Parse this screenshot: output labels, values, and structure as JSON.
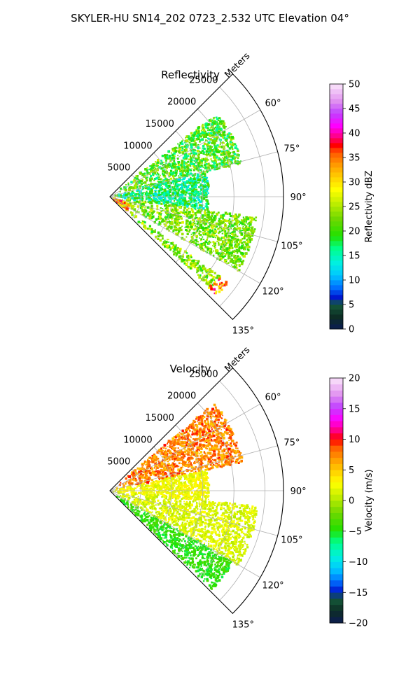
{
  "figure": {
    "suptitle": "SKYLER-HU  SN14_202  0723_2.532 UTC Elevation 04°"
  },
  "chart_data": [
    {
      "type": "heatmap",
      "projection": "polar-sector",
      "title": "Reflectivity",
      "range_axis_label": "Meters",
      "range_ticks": [
        5000,
        10000,
        15000,
        20000,
        25000
      ],
      "range_tick_labels": [
        "5000",
        "10000",
        "15000",
        "20000",
        "25000"
      ],
      "range_max": 28000,
      "azimuth_range": [
        45,
        135
      ],
      "azimuth_ticks": [
        60,
        75,
        90,
        105,
        120,
        135
      ],
      "azimuth_tick_labels": [
        "60°",
        "75°",
        "90°",
        "105°",
        "120°",
        "135°"
      ],
      "grid": true,
      "colorbar": {
        "label": "Reflectivity dBZ",
        "min": 0,
        "max": 50,
        "ticks": [
          0,
          5,
          10,
          15,
          20,
          25,
          30,
          35,
          40,
          45,
          50
        ],
        "tick_labels": [
          "0",
          "5",
          "10",
          "15",
          "20",
          "25",
          "30",
          "35",
          "40",
          "45",
          "50"
        ],
        "bin_width": 1
      },
      "echo_regions": [
        {
          "az": [
            52,
            76
          ],
          "r": [
            1000,
            22000
          ],
          "value_range": [
            15,
            26
          ]
        },
        {
          "az": [
            76,
            98
          ],
          "r": [
            500,
            16000
          ],
          "value_range": [
            12,
            22
          ]
        },
        {
          "az": [
            98,
            120
          ],
          "r": [
            500,
            24000
          ],
          "value_range": [
            18,
            27
          ]
        },
        {
          "az": [
            126,
            132
          ],
          "r": [
            3000,
            22000
          ],
          "value_range": [
            18,
            28
          ]
        },
        {
          "az": [
            110,
            128
          ],
          "r": [
            400,
            3500
          ],
          "value_range": [
            25,
            40
          ]
        },
        {
          "az": [
            126,
            133
          ],
          "r": [
            21000,
            23500
          ],
          "value_range": [
            28,
            40
          ]
        }
      ]
    },
    {
      "type": "heatmap",
      "projection": "polar-sector",
      "title": "Velocity",
      "range_axis_label": "Meters",
      "range_ticks": [
        5000,
        10000,
        15000,
        20000,
        25000
      ],
      "range_tick_labels": [
        "5000",
        "10000",
        "15000",
        "20000",
        "25000"
      ],
      "range_max": 28000,
      "azimuth_range": [
        45,
        135
      ],
      "azimuth_ticks": [
        60,
        75,
        90,
        105,
        120,
        135
      ],
      "azimuth_tick_labels": [
        "60°",
        "75°",
        "90°",
        "105°",
        "120°",
        "135°"
      ],
      "grid": true,
      "colorbar": {
        "label": "Velocity (m/s)",
        "min": -20,
        "max": 20,
        "ticks": [
          -20,
          -15,
          -10,
          -5,
          0,
          5,
          10,
          15,
          20
        ],
        "tick_labels": [
          "−20",
          "−15",
          "−10",
          "−5",
          "0",
          "5",
          "10",
          "15",
          "20"
        ],
        "bin_width": 1
      },
      "echo_regions": [
        {
          "az": [
            50,
            78
          ],
          "r": [
            1000,
            22000
          ],
          "value_range": [
            5,
            10
          ]
        },
        {
          "az": [
            78,
            96
          ],
          "r": [
            500,
            16000
          ],
          "value_range": [
            1,
            4
          ]
        },
        {
          "az": [
            96,
            120
          ],
          "r": [
            500,
            24000
          ],
          "value_range": [
            0,
            3
          ]
        },
        {
          "az": [
            120,
            134
          ],
          "r": [
            300,
            23000
          ],
          "value_range": [
            -6,
            -3
          ]
        }
      ]
    }
  ],
  "colormap": {
    "name": "radar-discrete",
    "stops": [
      [
        0.0,
        "#0b1b52"
      ],
      [
        0.05,
        "#0d2d24"
      ],
      [
        0.1,
        "#155a3a"
      ],
      [
        0.13,
        "#0018d0"
      ],
      [
        0.17,
        "#0070ff"
      ],
      [
        0.22,
        "#00c8ff"
      ],
      [
        0.27,
        "#00f0e0"
      ],
      [
        0.33,
        "#00ff88"
      ],
      [
        0.38,
        "#22e000"
      ],
      [
        0.45,
        "#70d800"
      ],
      [
        0.52,
        "#c8f000"
      ],
      [
        0.57,
        "#ffff00"
      ],
      [
        0.62,
        "#ffd000"
      ],
      [
        0.67,
        "#ff9a00"
      ],
      [
        0.72,
        "#ff5a00"
      ],
      [
        0.75,
        "#ff0000"
      ],
      [
        0.79,
        "#ff0090"
      ],
      [
        0.83,
        "#ff00ff"
      ],
      [
        0.88,
        "#c040ff"
      ],
      [
        0.93,
        "#e090f0"
      ],
      [
        1.0,
        "#fbe6fb"
      ]
    ]
  }
}
